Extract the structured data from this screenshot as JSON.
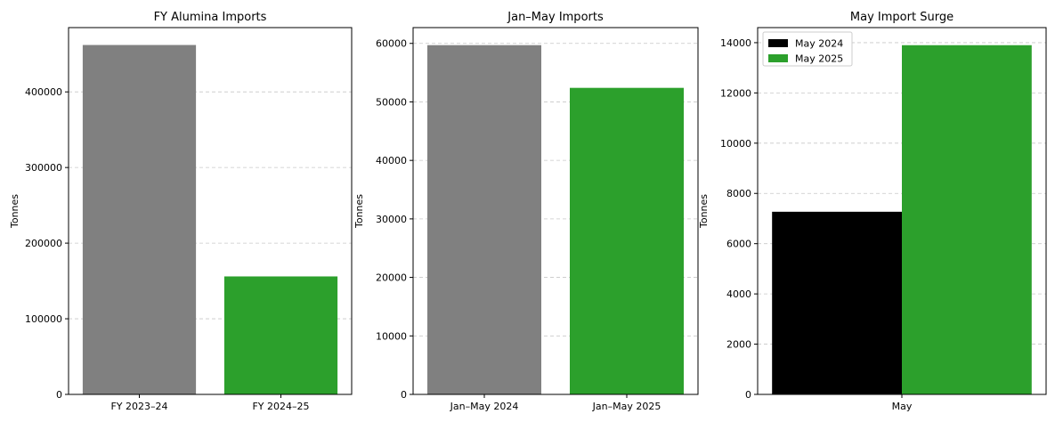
{
  "colors": {
    "gray": "#808080",
    "green": "#2ca02c",
    "black": "#000000",
    "grid": "#c8c8c8"
  },
  "chart_data": [
    {
      "type": "bar",
      "title": "FY Alumina Imports",
      "xlabel": "",
      "ylabel": "Tonnes",
      "categories": [
        "FY 2023–24",
        "FY 2024–25"
      ],
      "values": [
        462000,
        156000
      ],
      "bar_colors": [
        "#808080",
        "#2ca02c"
      ],
      "ylim": [
        0,
        485000
      ],
      "yticks": [
        0,
        100000,
        200000,
        300000,
        400000
      ],
      "ytick_labels": [
        "0",
        "100000",
        "200000",
        "300000",
        "400000"
      ],
      "grid": "y-dashed"
    },
    {
      "type": "bar",
      "title": "Jan–May Imports",
      "xlabel": "",
      "ylabel": "Tonnes",
      "categories": [
        "Jan–May 2024",
        "Jan–May 2025"
      ],
      "values": [
        59700,
        52400
      ],
      "bar_colors": [
        "#808080",
        "#2ca02c"
      ],
      "ylim": [
        0,
        62700
      ],
      "yticks": [
        0,
        10000,
        20000,
        30000,
        40000,
        50000,
        60000
      ],
      "ytick_labels": [
        "0",
        "10000",
        "20000",
        "30000",
        "40000",
        "50000",
        "60000"
      ],
      "grid": "y-dashed"
    },
    {
      "type": "bar",
      "title": "May Import Surge",
      "xlabel": "",
      "ylabel": "Tonnes",
      "categories": [
        "May"
      ],
      "series": [
        {
          "name": "May 2024",
          "values": [
            7270
          ],
          "color": "#000000"
        },
        {
          "name": "May 2025",
          "values": [
            13900
          ],
          "color": "#2ca02c"
        }
      ],
      "ylim": [
        0,
        14600
      ],
      "yticks": [
        0,
        2000,
        4000,
        6000,
        8000,
        10000,
        12000,
        14000
      ],
      "ytick_labels": [
        "0",
        "2000",
        "4000",
        "6000",
        "8000",
        "10000",
        "12000",
        "14000"
      ],
      "grid": "y-dashed",
      "legend": "top-left"
    }
  ]
}
